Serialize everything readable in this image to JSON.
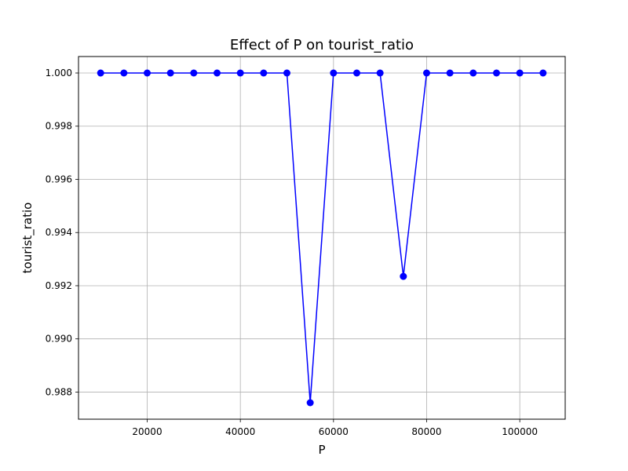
{
  "chart_data": {
    "type": "line",
    "title": "Effect of P on tourist_ratio",
    "xlabel": "P",
    "ylabel": "tourist_ratio",
    "xlim": [
      5250,
      109750
    ],
    "ylim": [
      0.98698,
      1.00062
    ],
    "x_ticks": [
      20000,
      40000,
      60000,
      80000,
      100000
    ],
    "x_tick_labels": [
      "20000",
      "40000",
      "60000",
      "80000",
      "100000"
    ],
    "y_ticks": [
      0.988,
      0.99,
      0.992,
      0.994,
      0.996,
      0.998,
      1.0
    ],
    "y_tick_labels": [
      "0.988",
      "0.990",
      "0.992",
      "0.994",
      "0.996",
      "0.998",
      "1.000"
    ],
    "grid": true,
    "legend": false,
    "series": [
      {
        "color": "#0000ff",
        "marker": "circle",
        "x": [
          10000,
          15000,
          20000,
          25000,
          30000,
          35000,
          40000,
          45000,
          50000,
          55000,
          60000,
          65000,
          70000,
          75000,
          80000,
          85000,
          90000,
          95000,
          100000,
          105000
        ],
        "y": [
          1.0,
          1.0,
          1.0,
          1.0,
          1.0,
          1.0,
          1.0,
          1.0,
          1.0,
          0.9876,
          1.0,
          1.0,
          1.0,
          0.99235,
          1.0,
          1.0,
          1.0,
          1.0,
          1.0,
          1.0
        ]
      }
    ]
  }
}
